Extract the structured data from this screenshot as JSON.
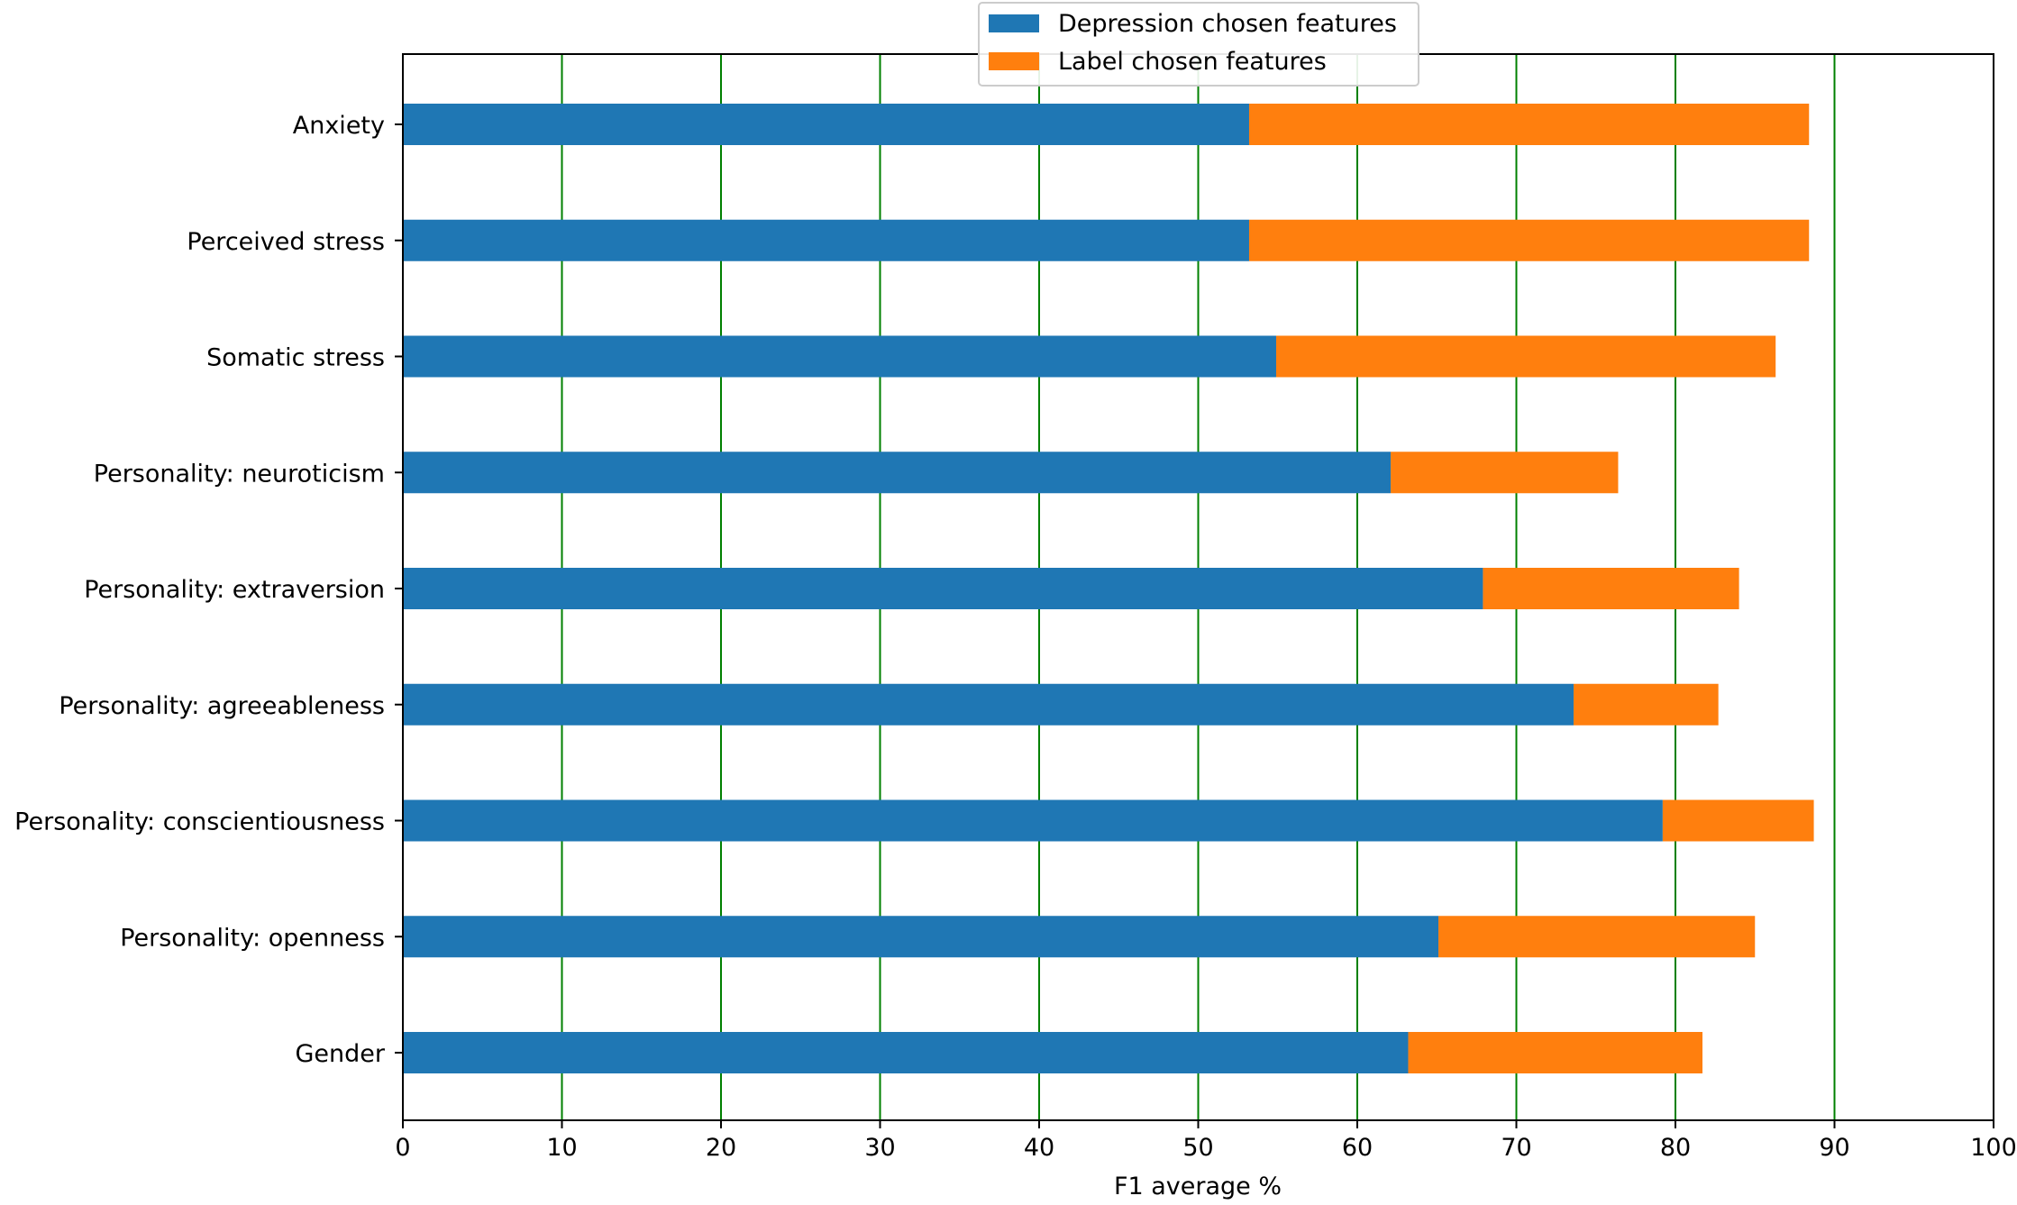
{
  "chart_data": {
    "type": "bar",
    "orientation": "horizontal",
    "stacked": true,
    "title": "",
    "xlabel": "F1 average %",
    "ylabel": "",
    "xlim": [
      0,
      100
    ],
    "xticks": [
      0,
      10,
      20,
      30,
      40,
      50,
      60,
      70,
      80,
      90,
      100
    ],
    "grid": "vertical",
    "grid_color": "#008000",
    "legend_position": "top-center",
    "categories": [
      "Anxiety",
      "Perceived stress",
      "Somatic stress",
      "Personality: neuroticism",
      "Personality: extraversion",
      "Personality: agreeableness",
      "Personality: conscientiousness",
      "Personality: openness",
      "Gender"
    ],
    "series": [
      {
        "name": "Depression chosen features",
        "color": "#1f77b4",
        "values": [
          53.2,
          53.2,
          54.9,
          62.1,
          67.9,
          73.6,
          79.2,
          65.1,
          63.2
        ]
      },
      {
        "name": "Label chosen features",
        "color": "#ff7f0e",
        "values": [
          35.2,
          35.2,
          31.4,
          14.3,
          16.1,
          9.1,
          9.5,
          19.9,
          18.5
        ]
      }
    ]
  }
}
